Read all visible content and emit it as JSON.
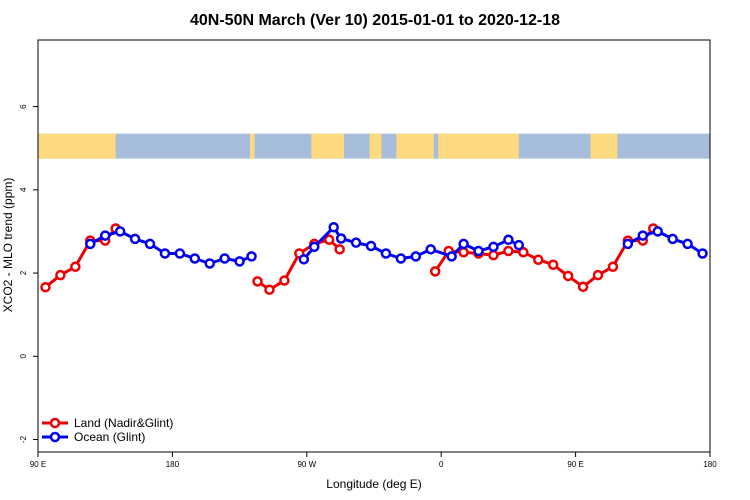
{
  "chart_data": {
    "type": "line",
    "title": "40N-50N March (Ver 10)   2015-01-01 to 2020-12-18",
    "xlabel": "Longitude (deg E)",
    "ylabel": "XCO2 - MLO trend (ppm)",
    "xlim": [
      90,
      540
    ],
    "ylim": [
      -2.3,
      7.6
    ],
    "x_ticks": [
      {
        "value": 90,
        "label": "90 E"
      },
      {
        "value": 180,
        "label": "180"
      },
      {
        "value": 270,
        "label": "90 W"
      },
      {
        "value": 360,
        "label": "0"
      },
      {
        "value": 450,
        "label": "90 E"
      },
      {
        "value": 540,
        "label": "180"
      }
    ],
    "y_ticks": [
      {
        "value": -2,
        "label": "-2"
      },
      {
        "value": 0,
        "label": "0"
      },
      {
        "value": 2,
        "label": "2"
      },
      {
        "value": 4,
        "label": "4"
      },
      {
        "value": 6,
        "label": "6"
      }
    ],
    "land_mask": {
      "y_range": [
        4.75,
        5.35
      ],
      "ocean_color": "#a6bddb",
      "land_color": "#fdd980",
      "land_segments": [
        [
          90,
          142
        ],
        [
          232,
          235
        ],
        [
          273,
          295
        ],
        [
          312,
          320
        ],
        [
          330,
          355
        ],
        [
          358,
          412
        ],
        [
          460,
          478
        ]
      ]
    },
    "legend_position": "bottom-left",
    "series": [
      {
        "name": "Land (Nadir&Glint)",
        "color": "#ee0000",
        "segments": [
          [
            [
              95,
              1.66
            ],
            [
              105,
              1.95
            ],
            [
              115,
              2.15
            ],
            [
              125,
              2.78
            ],
            [
              135,
              2.78
            ],
            [
              142,
              3.07
            ]
          ],
          [
            [
              237,
              1.8
            ],
            [
              245,
              1.6
            ],
            [
              255,
              1.82
            ],
            [
              265,
              2.47
            ],
            [
              275,
              2.7
            ],
            [
              285,
              2.8
            ],
            [
              292,
              2.57
            ]
          ],
          [
            [
              356,
              2.04
            ],
            [
              365,
              2.53
            ],
            [
              375,
              2.5
            ],
            [
              385,
              2.47
            ],
            [
              395,
              2.43
            ],
            [
              405,
              2.53
            ],
            [
              415,
              2.5
            ],
            [
              425,
              2.32
            ],
            [
              435,
              2.2
            ],
            [
              445,
              1.93
            ],
            [
              455,
              1.67
            ],
            [
              465,
              1.95
            ],
            [
              475,
              2.15
            ],
            [
              485,
              2.78
            ],
            [
              495,
              2.78
            ],
            [
              502,
              3.07
            ]
          ]
        ]
      },
      {
        "name": "Ocean (Glint)",
        "color": "#0000ee",
        "segments": [
          [
            [
              125,
              2.7
            ],
            [
              135,
              2.9
            ],
            [
              145,
              3.0
            ],
            [
              155,
              2.82
            ],
            [
              165,
              2.7
            ],
            [
              175,
              2.47
            ],
            [
              185,
              2.47
            ],
            [
              195,
              2.35
            ],
            [
              205,
              2.23
            ],
            [
              215,
              2.35
            ],
            [
              225,
              2.28
            ],
            [
              233,
              2.4
            ]
          ],
          [
            [
              268,
              2.33
            ],
            [
              275,
              2.63
            ],
            [
              288,
              3.1
            ],
            [
              293,
              2.83
            ],
            [
              303,
              2.73
            ],
            [
              313,
              2.65
            ],
            [
              323,
              2.47
            ],
            [
              333,
              2.35
            ],
            [
              343,
              2.4
            ],
            [
              353,
              2.57
            ],
            [
              367,
              2.4
            ],
            [
              375,
              2.7
            ],
            [
              385,
              2.53
            ],
            [
              395,
              2.63
            ],
            [
              405,
              2.8
            ],
            [
              412,
              2.67
            ]
          ],
          [
            [
              485,
              2.7
            ],
            [
              495,
              2.9
            ],
            [
              505,
              3.0
            ],
            [
              515,
              2.82
            ],
            [
              525,
              2.7
            ],
            [
              535,
              2.47
            ]
          ]
        ]
      }
    ]
  }
}
